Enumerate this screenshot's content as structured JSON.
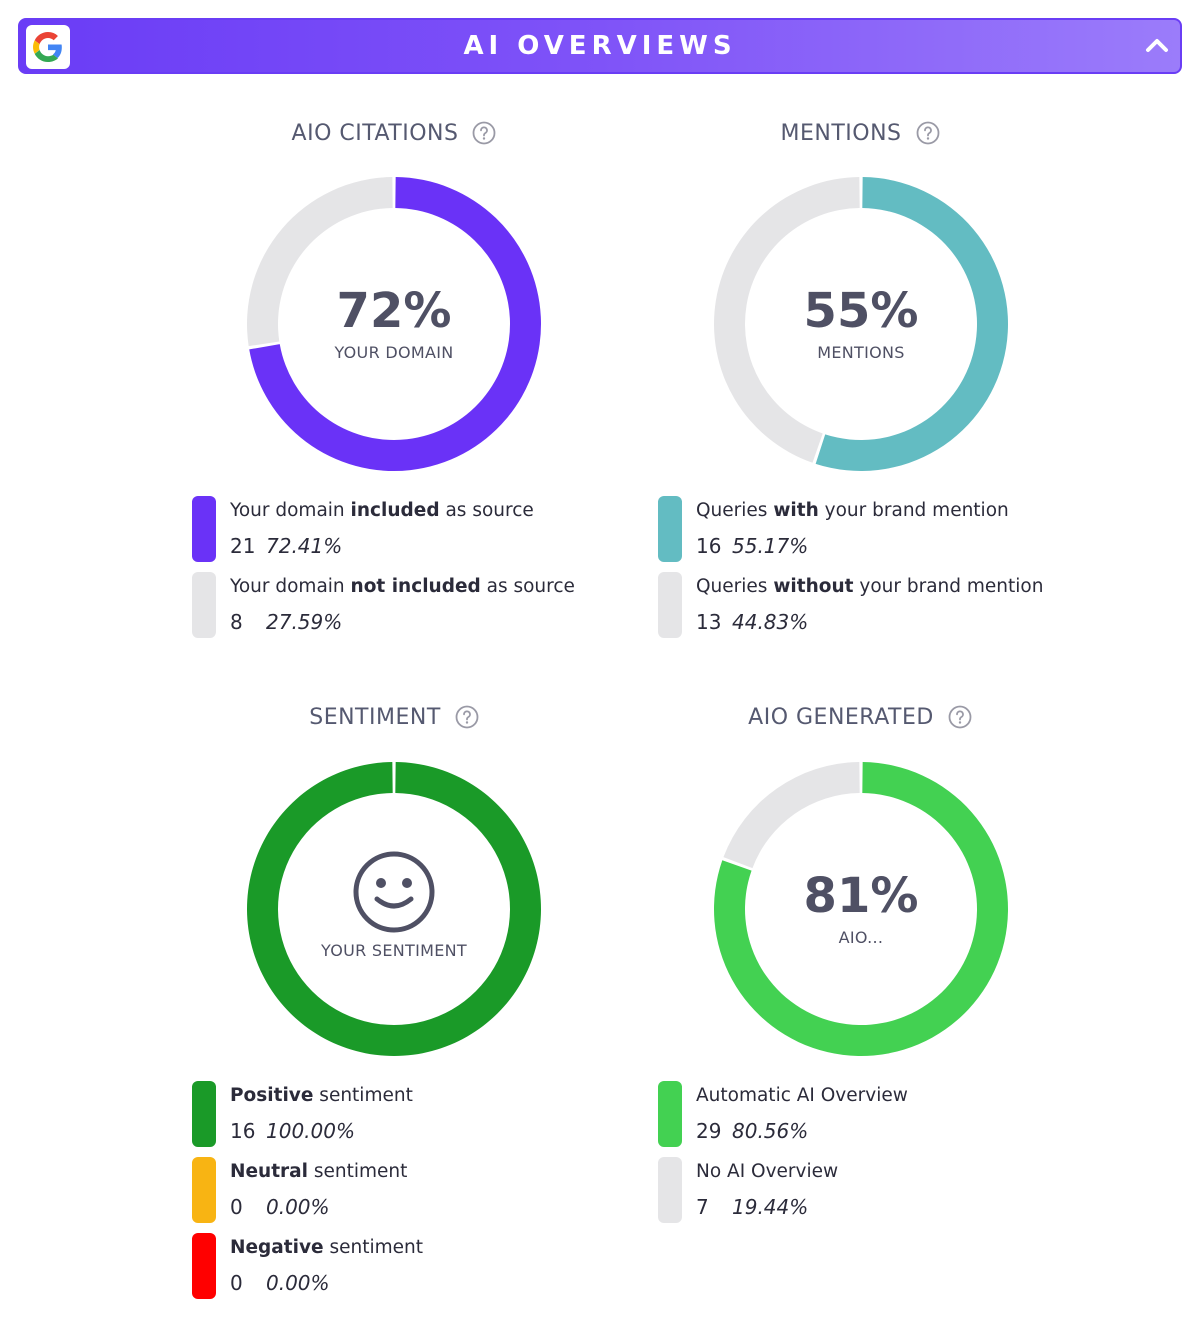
{
  "header": {
    "title": "AI OVERVIEWS",
    "logo_icon": "google-g-icon",
    "toggle_icon": "chevron-up-icon"
  },
  "colors": {
    "purple": "#6a32f7",
    "teal": "#63bcc2",
    "dark_green": "#1a9a28",
    "light_green": "#43d152",
    "amber": "#f8b413",
    "red": "#ff0000",
    "grey": "#e5e5e7"
  },
  "citations": {
    "title": "AIO CITATIONS",
    "percent": "72%",
    "caption": "YOUR DOMAIN",
    "legend": [
      {
        "pre": "Your domain ",
        "bold": "included",
        "post": " as source",
        "count": "21",
        "pct": "72.41%"
      },
      {
        "pre": "Your domain ",
        "bold": "not included",
        "post": " as source",
        "count": "8",
        "pct": "27.59%"
      }
    ]
  },
  "mentions": {
    "title": "MENTIONS",
    "percent": "55%",
    "caption": "MENTIONS",
    "legend": [
      {
        "pre": "Queries ",
        "bold": "with",
        "post": " your brand mention",
        "count": "16",
        "pct": "55.17%"
      },
      {
        "pre": "Queries ",
        "bold": "without",
        "post": " your brand mention",
        "count": "13",
        "pct": "44.83%"
      }
    ]
  },
  "sentiment": {
    "title": "SENTIMENT",
    "caption": "YOUR SENTIMENT",
    "icon": "smiley-face-icon",
    "legend": [
      {
        "pre": "",
        "bold": "Positive",
        "post": " sentiment",
        "count": "16",
        "pct": "100.00%"
      },
      {
        "pre": "",
        "bold": "Neutral",
        "post": " sentiment",
        "count": "0",
        "pct": "0.00%"
      },
      {
        "pre": "",
        "bold": "Negative",
        "post": " sentiment",
        "count": "0",
        "pct": "0.00%"
      }
    ]
  },
  "generated": {
    "title": "AIO GENERATED",
    "percent": "81%",
    "caption": "AIO...",
    "legend": [
      {
        "pre": "",
        "bold": "",
        "post": "Automatic AI Overview",
        "count": "29",
        "pct": "80.56%"
      },
      {
        "pre": "",
        "bold": "",
        "post": "No AI Overview",
        "count": "7",
        "pct": "19.44%"
      }
    ]
  },
  "chart_data": [
    {
      "type": "pie",
      "title": "AIO CITATIONS",
      "labels": [
        "Your domain included as source",
        "Your domain not included as source"
      ],
      "values": [
        21,
        8
      ]
    },
    {
      "type": "pie",
      "title": "MENTIONS",
      "labels": [
        "Queries with your brand mention",
        "Queries without your brand mention"
      ],
      "values": [
        16,
        13
      ]
    },
    {
      "type": "pie",
      "title": "SENTIMENT",
      "labels": [
        "Positive sentiment",
        "Neutral sentiment",
        "Negative sentiment"
      ],
      "values": [
        16,
        0,
        0
      ]
    },
    {
      "type": "pie",
      "title": "AIO GENERATED",
      "labels": [
        "Automatic AI Overview",
        "No AI Overview"
      ],
      "values": [
        29,
        7
      ]
    }
  ]
}
